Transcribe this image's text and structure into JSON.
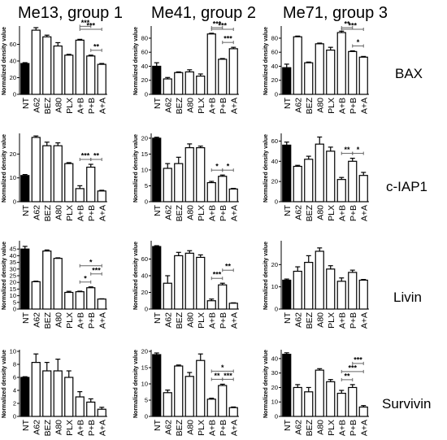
{
  "column_headers": [
    "Me13, group 1",
    "Me41, group 2",
    "Me71, group 3"
  ],
  "row_labels": [
    "BAX",
    "c-IAP1",
    "Livin",
    "Survivin"
  ],
  "colors": {
    "control_bar": "#000000",
    "treatment_bar": "#ffffff",
    "stroke": "#000000"
  },
  "chart_data": [
    {
      "type": "bar",
      "row": "BAX",
      "column": "Me13, group 1",
      "ylabel": "Normalized density value",
      "categories": [
        "NT",
        "A62",
        "BEZ",
        "A80",
        "PLX",
        "A+B",
        "P+B",
        "A+A"
      ],
      "values": [
        37,
        77,
        69,
        58,
        47,
        65,
        46,
        36
      ],
      "errors": [
        1,
        3,
        2,
        4,
        1,
        1,
        1,
        1
      ],
      "ylim": [
        0,
        80
      ],
      "yticks": [
        0,
        20,
        40,
        60
      ],
      "sig": [
        {
          "from": 5,
          "to": 6,
          "level": 1,
          "label": "***"
        },
        {
          "from": 5,
          "to": 7,
          "level": 2,
          "label": "***"
        },
        {
          "from": 6,
          "to": 7,
          "level": 0,
          "label": "**"
        }
      ]
    },
    {
      "type": "bar",
      "row": "BAX",
      "column": "Me41, group 2",
      "ylabel": "Normalized density value",
      "categories": [
        "NT",
        "A62",
        "BEZ",
        "A80",
        "PLX",
        "A+B",
        "P+B",
        "A+A"
      ],
      "values": [
        40,
        22,
        31,
        32,
        26,
        86,
        50,
        65
      ],
      "errors": [
        5,
        2,
        1,
        3,
        3,
        1,
        1,
        2
      ],
      "ylim": [
        0,
        95
      ],
      "yticks": [
        0,
        20,
        40,
        60,
        80
      ],
      "sig": [
        {
          "from": 5,
          "to": 6,
          "level": 1,
          "label": "***"
        },
        {
          "from": 5,
          "to": 7,
          "level": 2,
          "label": "***"
        },
        {
          "from": 6,
          "to": 7,
          "level": 0,
          "label": "***"
        }
      ]
    },
    {
      "type": "bar",
      "row": "BAX",
      "column": "Me71, group 3",
      "ylabel": "Normalized density value",
      "categories": [
        "NT",
        "A62",
        "BEZ",
        "A80",
        "PLX",
        "A+B",
        "P+B",
        "A+A"
      ],
      "values": [
        38,
        82,
        45,
        72,
        63,
        88,
        61,
        53
      ],
      "errors": [
        5,
        1,
        1,
        1,
        4,
        2,
        1,
        1
      ],
      "ylim": [
        0,
        95
      ],
      "yticks": [
        0,
        20,
        40,
        60,
        80
      ],
      "sig": [
        {
          "from": 5,
          "to": 6,
          "level": 1,
          "label": "**"
        },
        {
          "from": 5,
          "to": 7,
          "level": 2,
          "label": "***"
        },
        {
          "from": 6,
          "to": 7,
          "level": 0,
          "label": "*"
        }
      ]
    },
    {
      "type": "bar",
      "row": "c-IAP1",
      "column": "Me13, group 1",
      "ylabel": "Normalized density value",
      "categories": [
        "NT",
        "A62",
        "BEZ",
        "A80",
        "PLX",
        "A+B",
        "P+B",
        "A+A"
      ],
      "values": [
        11,
        27,
        23.5,
        23.5,
        16,
        5.5,
        14.5,
        4.5
      ],
      "errors": [
        0.4,
        0.6,
        1.5,
        1.2,
        0.4,
        1.2,
        1.2,
        0.3
      ],
      "ylim": [
        0,
        28
      ],
      "yticks": [
        0,
        10,
        20
      ],
      "sig": [
        {
          "from": 5,
          "to": 6,
          "level": 0,
          "label": "***"
        },
        {
          "from": 6,
          "to": 7,
          "level": 0,
          "label": "**"
        }
      ]
    },
    {
      "type": "bar",
      "row": "c-IAP1",
      "column": "Me41, group 2",
      "ylabel": "Normalized density value",
      "categories": [
        "NT",
        "A62",
        "BEZ",
        "A80",
        "PLX",
        "A+B",
        "P+B",
        "A+A"
      ],
      "values": [
        20,
        10.5,
        12,
        17,
        17,
        6,
        8,
        4
      ],
      "errors": [
        0.3,
        1.5,
        2,
        1.2,
        0.5,
        0.4,
        0.4,
        0.2
      ],
      "ylim": [
        0,
        21
      ],
      "yticks": [
        0,
        5,
        10,
        15,
        20
      ],
      "sig": [
        {
          "from": 5,
          "to": 6,
          "level": 0,
          "label": "*"
        },
        {
          "from": 6,
          "to": 7,
          "level": 0,
          "label": "*"
        }
      ]
    },
    {
      "type": "bar",
      "row": "c-IAP1",
      "column": "Me71, group 3",
      "ylabel": "Normalized density value",
      "categories": [
        "NT",
        "A62",
        "BEZ",
        "A80",
        "PLX",
        "A+B",
        "P+B",
        "A+A"
      ],
      "values": [
        56,
        35,
        42,
        57,
        50,
        22,
        40,
        26
      ],
      "errors": [
        3,
        1,
        3,
        7,
        4,
        2,
        3,
        3
      ],
      "ylim": [
        0,
        66
      ],
      "yticks": [
        0,
        20,
        40,
        60
      ],
      "sig": [
        {
          "from": 5,
          "to": 6,
          "level": 0,
          "label": "**"
        },
        {
          "from": 6,
          "to": 7,
          "level": 0,
          "label": "*"
        }
      ]
    },
    {
      "type": "bar",
      "row": "Livin",
      "column": "Me13, group 1",
      "ylabel": "Normalized density value",
      "categories": [
        "NT",
        "A62",
        "BEZ",
        "A80",
        "PLX",
        "A+B",
        "P+B",
        "A+A"
      ],
      "values": [
        45,
        20.5,
        43.5,
        38,
        12.5,
        13,
        16,
        7.5
      ],
      "errors": [
        2,
        0.4,
        0.8,
        0.4,
        0.8,
        0.4,
        0.6,
        0.2
      ],
      "ylim": [
        0,
        50
      ],
      "yticks": [
        0,
        5,
        10,
        15,
        20,
        25,
        30,
        35,
        40,
        45
      ],
      "sig": [
        {
          "from": 5,
          "to": 6,
          "level": 0,
          "label": "*"
        },
        {
          "from": 6,
          "to": 7,
          "level": 1,
          "label": "***"
        },
        {
          "from": 5,
          "to": 7,
          "level": 2,
          "label": "*"
        }
      ]
    },
    {
      "type": "bar",
      "row": "Livin",
      "column": "Me41, group 2",
      "ylabel": "Normalized density value",
      "categories": [
        "NT",
        "A62",
        "BEZ",
        "A80",
        "PLX",
        "A+B",
        "P+B",
        "A+A"
      ],
      "values": [
        75,
        31,
        64,
        67,
        62,
        10,
        29,
        7
      ],
      "errors": [
        1,
        9,
        4,
        3,
        3,
        2,
        2,
        0.5
      ],
      "ylim": [
        0,
        80
      ],
      "yticks": [
        0,
        20,
        40,
        60
      ],
      "sig": [
        {
          "from": 5,
          "to": 6,
          "level": 0,
          "label": "***"
        },
        {
          "from": 6,
          "to": 7,
          "level": 1,
          "label": "**"
        }
      ]
    },
    {
      "type": "bar",
      "row": "Livin",
      "column": "Me71, group 3",
      "ylabel": "Normalized density value",
      "categories": [
        "NT",
        "A62",
        "BEZ",
        "A80",
        "PLX",
        "A+B",
        "P+B",
        "A+A"
      ],
      "values": [
        13,
        17,
        21,
        26,
        18,
        12.5,
        16.5,
        13
      ],
      "errors": [
        0.5,
        2,
        3,
        1.5,
        1.5,
        1.5,
        1,
        0.3
      ],
      "ylim": [
        0,
        30
      ],
      "yticks": [
        0,
        10,
        20
      ],
      "sig": []
    },
    {
      "type": "bar",
      "row": "Survivin",
      "column": "Me13, group 1",
      "ylabel": "Normalized density value",
      "categories": [
        "NT",
        "A62",
        "BEZ",
        "A80",
        "PLX",
        "A+B",
        "P+B",
        "A+A"
      ],
      "values": [
        6,
        8.3,
        7,
        7,
        6,
        3,
        2.2,
        1.1
      ],
      "errors": [
        0.1,
        1.3,
        1.3,
        1.8,
        1,
        0.8,
        0.5,
        0.3
      ],
      "ylim": [
        0,
        10
      ],
      "yticks": [
        0,
        2,
        4,
        6,
        8,
        10
      ],
      "sig": []
    },
    {
      "type": "bar",
      "row": "Survivin",
      "column": "Me41, group 2",
      "ylabel": "Normalized density value",
      "categories": [
        "NT",
        "A62",
        "BEZ",
        "A80",
        "PLX",
        "A+B",
        "P+B",
        "A+A"
      ],
      "values": [
        19,
        7.3,
        15.5,
        12.3,
        17.2,
        5.3,
        9.5,
        2.7
      ],
      "errors": [
        0.5,
        0.8,
        0.3,
        1.2,
        2,
        0.3,
        0.4,
        0.2
      ],
      "ylim": [
        0,
        20
      ],
      "yticks": [
        0,
        5,
        10,
        15,
        20
      ],
      "sig": [
        {
          "from": 5,
          "to": 6,
          "level": 0,
          "label": "**"
        },
        {
          "from": 6,
          "to": 7,
          "level": 0,
          "label": "***"
        },
        {
          "from": 5,
          "to": 7,
          "level": 1,
          "label": "*"
        }
      ]
    },
    {
      "type": "bar",
      "row": "Survivin",
      "column": "Me71, group 3",
      "ylabel": "Normalized density value",
      "categories": [
        "NT",
        "A62",
        "BEZ",
        "A80",
        "PLX",
        "A+B",
        "P+B",
        "A+A"
      ],
      "values": [
        43,
        20,
        17,
        32,
        24,
        16,
        20,
        6.5
      ],
      "errors": [
        1,
        2,
        3,
        1,
        1.5,
        2,
        2,
        1
      ],
      "ylim": [
        0,
        45
      ],
      "yticks": [
        0,
        10,
        20,
        30,
        40
      ],
      "sig": [
        {
          "from": 5,
          "to": 6,
          "level": 0,
          "label": "**"
        },
        {
          "from": 5,
          "to": 7,
          "level": 1,
          "label": "***"
        },
        {
          "from": 6,
          "to": 7,
          "level": 2,
          "label": "***"
        }
      ]
    }
  ]
}
